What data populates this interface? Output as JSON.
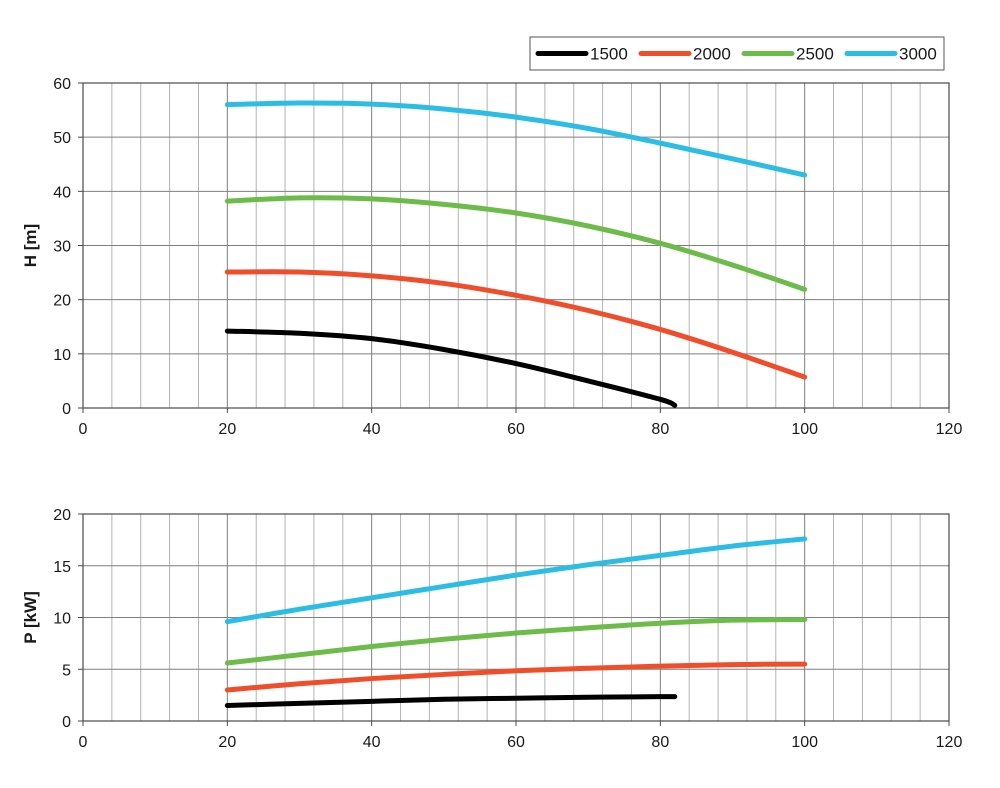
{
  "colors": {
    "1500": "#000000",
    "2000": "#f04e2a",
    "2500": "#6cbc4a",
    "3000": "#2bbde4",
    "grid_major": "#7f7f7f",
    "grid_minor": "#b3b3b3",
    "axis": "#4a4a4a"
  },
  "legend": {
    "placement": "top-right",
    "entries": [
      "1500",
      "2000",
      "2500",
      "3000"
    ]
  },
  "chart_data": [
    {
      "type": "line",
      "ylabel": "H [m]",
      "xlabel": "",
      "xlim": [
        0,
        120
      ],
      "ylim": [
        0,
        60
      ],
      "xticks": [
        0,
        20,
        40,
        60,
        80,
        100,
        120
      ],
      "yticks": [
        0,
        10,
        20,
        30,
        40,
        50,
        60
      ],
      "grid": true,
      "series": [
        {
          "name": "1500",
          "x": [
            20,
            30,
            40,
            50,
            60,
            70,
            80,
            82
          ],
          "y": [
            14.2,
            13.8,
            12.8,
            10.8,
            8.2,
            5.0,
            1.6,
            0.5
          ]
        },
        {
          "name": "2000",
          "x": [
            20,
            30,
            40,
            50,
            60,
            70,
            80,
            90,
            100
          ],
          "y": [
            25.1,
            25.1,
            24.4,
            23.0,
            20.8,
            18.0,
            14.5,
            10.3,
            5.7
          ]
        },
        {
          "name": "2500",
          "x": [
            20,
            30,
            40,
            50,
            60,
            70,
            80,
            90,
            100
          ],
          "y": [
            38.2,
            38.8,
            38.6,
            37.6,
            36.0,
            33.6,
            30.4,
            26.4,
            21.9
          ]
        },
        {
          "name": "3000",
          "x": [
            20,
            30,
            40,
            50,
            60,
            70,
            80,
            90,
            100
          ],
          "y": [
            56.0,
            56.3,
            56.1,
            55.2,
            53.7,
            51.6,
            48.9,
            46.0,
            43.0
          ]
        }
      ]
    },
    {
      "type": "line",
      "ylabel": "P [kW]",
      "xlabel": "",
      "xlim": [
        0,
        120
      ],
      "ylim": [
        0,
        20
      ],
      "xticks": [
        0,
        20,
        40,
        60,
        80,
        100,
        120
      ],
      "yticks": [
        0,
        5,
        10,
        15,
        20
      ],
      "grid": true,
      "series": [
        {
          "name": "1500",
          "x": [
            20,
            30,
            40,
            50,
            60,
            70,
            80,
            82
          ],
          "y": [
            1.5,
            1.7,
            1.9,
            2.1,
            2.2,
            2.3,
            2.35,
            2.35
          ]
        },
        {
          "name": "2000",
          "x": [
            20,
            30,
            40,
            50,
            60,
            70,
            80,
            90,
            100
          ],
          "y": [
            3.0,
            3.6,
            4.1,
            4.5,
            4.85,
            5.1,
            5.3,
            5.45,
            5.5
          ]
        },
        {
          "name": "2500",
          "x": [
            20,
            30,
            40,
            50,
            60,
            70,
            80,
            90,
            100
          ],
          "y": [
            5.6,
            6.4,
            7.2,
            7.9,
            8.5,
            9.0,
            9.45,
            9.75,
            9.8
          ]
        },
        {
          "name": "3000",
          "x": [
            20,
            30,
            40,
            50,
            60,
            70,
            80,
            90,
            100
          ],
          "y": [
            9.6,
            10.8,
            11.9,
            13.0,
            14.1,
            15.1,
            16.0,
            16.9,
            17.6
          ]
        }
      ]
    }
  ]
}
